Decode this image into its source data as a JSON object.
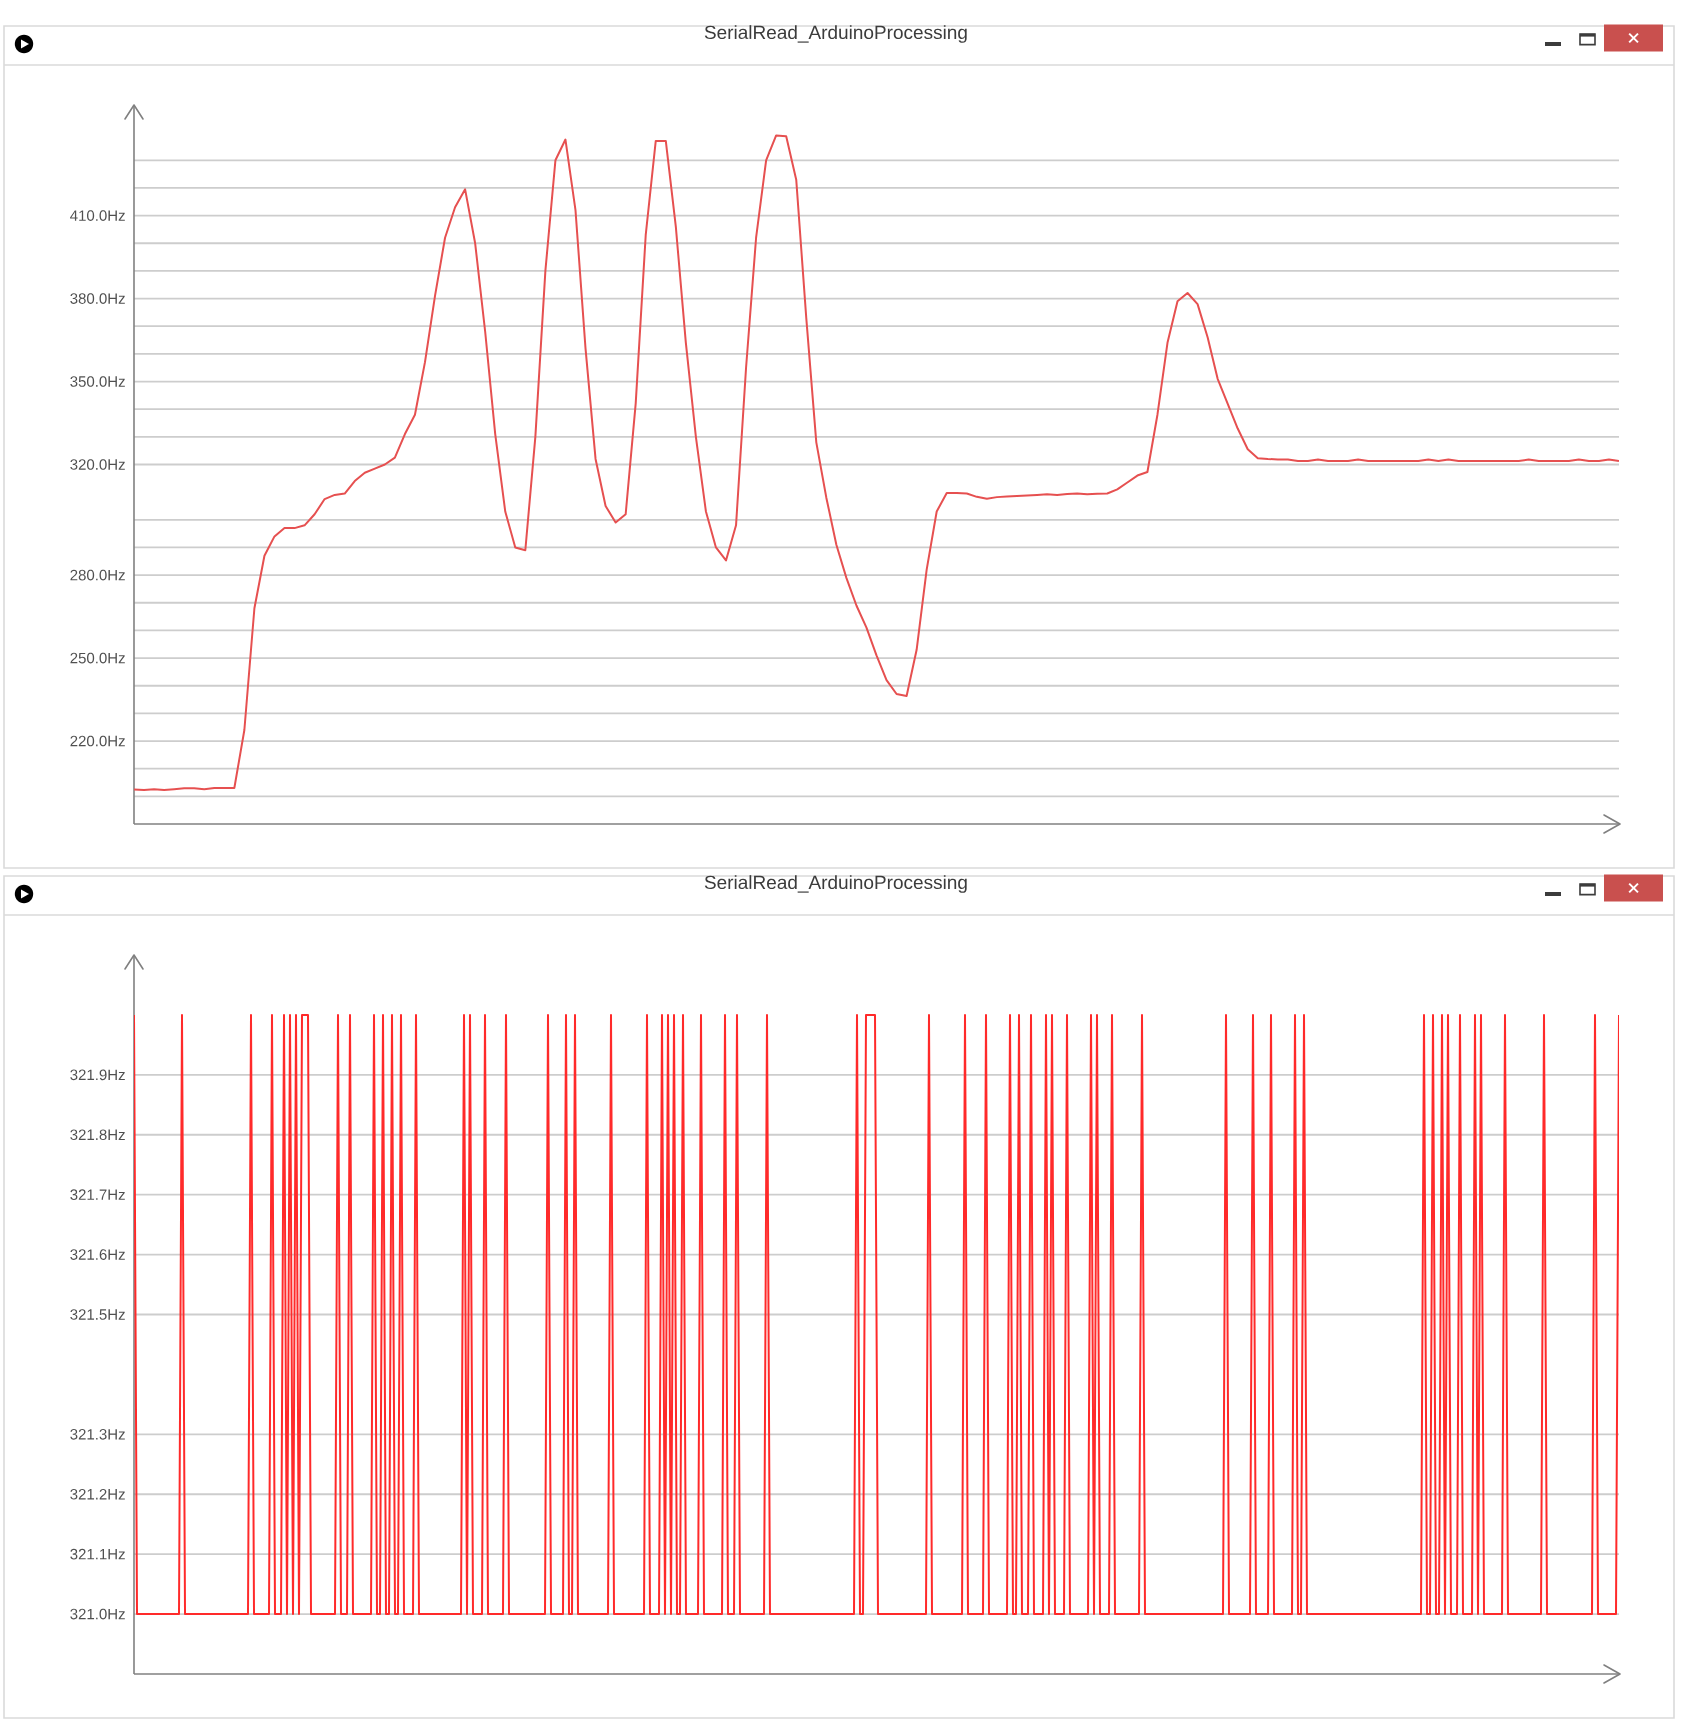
{
  "chart_data": [
    {
      "type": "line",
      "title": "SerialRead_ArduinoProcessing",
      "categories": [
        null,
        null,
        null,
        null,
        null,
        null,
        null,
        null,
        null,
        null,
        null,
        null,
        null,
        null,
        null,
        null,
        null,
        null,
        null,
        null,
        null,
        null,
        null,
        null,
        null,
        null,
        null,
        null,
        null,
        null,
        null,
        null,
        null,
        null,
        null,
        null,
        null,
        null,
        null,
        null,
        null,
        null,
        null,
        null,
        null,
        null,
        null,
        null,
        null,
        null,
        null,
        null,
        null,
        null,
        null,
        null,
        null,
        null,
        null,
        null,
        null,
        null,
        null,
        null,
        null,
        null,
        null,
        null,
        null,
        null,
        null,
        null,
        null,
        null,
        null,
        null,
        null,
        null,
        null,
        null,
        null,
        null,
        null,
        null,
        null,
        null,
        null,
        null,
        null,
        null,
        null,
        null,
        null,
        null,
        null,
        null,
        null,
        null,
        null,
        null,
        null,
        null,
        null,
        null,
        null,
        null,
        null,
        null,
        null,
        null,
        null,
        null,
        null,
        null,
        null,
        null,
        null,
        null,
        null,
        null,
        null,
        null,
        null,
        null,
        null,
        null,
        null,
        null,
        null,
        null,
        null,
        null,
        null,
        null,
        null,
        null,
        null,
        null,
        null,
        null,
        null,
        null,
        null,
        null,
        null,
        null,
        null,
        null,
        null
      ],
      "values": [
        202.5,
        202.3,
        202.6,
        202.3,
        202.6,
        202.9,
        202.9,
        202.6,
        203.0,
        203.0,
        203.0,
        224,
        268,
        287,
        294,
        297,
        297,
        298,
        302,
        307.5,
        309,
        309.5,
        314,
        317,
        318.5,
        320,
        322.5,
        331,
        338,
        357,
        381,
        402,
        413,
        419.5,
        400,
        368,
        331,
        303,
        290,
        289,
        330,
        390,
        430,
        437.5,
        412,
        362,
        322,
        305,
        299,
        302,
        342,
        403,
        437,
        437,
        406,
        364,
        330,
        303,
        290,
        285.3,
        298,
        355,
        402,
        430,
        439,
        438.7,
        423,
        373,
        328,
        308,
        291,
        279,
        269,
        261,
        251,
        242,
        237,
        236.3,
        253,
        282,
        303,
        309.7,
        309.7,
        309.5,
        308.3,
        307.6,
        308.2,
        308.4,
        308.6,
        308.8,
        309.0,
        309.2,
        309.0,
        309.3,
        309.5,
        309.2,
        309.4,
        309.5,
        311,
        313.5,
        316,
        317.3,
        338,
        364,
        379,
        382,
        378,
        366,
        351,
        342,
        333,
        325.5,
        322.3,
        322,
        321.8,
        321.8,
        321.3,
        321.3,
        321.8,
        321.3,
        321.3,
        321.3,
        321.8,
        321.3,
        321.3,
        321.3,
        321.3,
        321.3,
        321.3,
        321.8,
        321.3,
        321.8,
        321.3,
        321.3,
        321.3,
        321.3,
        321.3,
        321.3,
        321.3,
        321.8,
        321.3,
        321.3,
        321.3,
        321.3,
        321.8,
        321.3,
        321.3,
        321.8,
        321.3
      ],
      "color": "#e65050",
      "ylim": [
        190,
        450
      ],
      "yticks": [
        {
          "value": 200,
          "label": null
        },
        {
          "value": 210,
          "label": null
        },
        {
          "value": 220,
          "label": "220.0Hz"
        },
        {
          "value": 230,
          "label": null
        },
        {
          "value": 240,
          "label": null
        },
        {
          "value": 250,
          "label": "250.0Hz"
        },
        {
          "value": 260,
          "label": null
        },
        {
          "value": 270,
          "label": null
        },
        {
          "value": 280,
          "label": "280.0Hz"
        },
        {
          "value": 290,
          "label": null
        },
        {
          "value": 300,
          "label": null
        },
        {
          "value": 320,
          "label": "320.0Hz"
        },
        {
          "value": 330,
          "label": null
        },
        {
          "value": 340,
          "label": null
        },
        {
          "value": 350,
          "label": "350.0Hz"
        },
        {
          "value": 360,
          "label": null
        },
        {
          "value": 370,
          "label": null
        },
        {
          "value": 380,
          "label": "380.0Hz"
        },
        {
          "value": 390,
          "label": null
        },
        {
          "value": 400,
          "label": null
        },
        {
          "value": 410,
          "label": "410.0Hz"
        },
        {
          "value": 420,
          "label": null
        },
        {
          "value": 430,
          "label": null
        }
      ],
      "grid": "y"
    },
    {
      "type": "line",
      "title": "SerialRead_ArduinoProcessing",
      "categories": [
        null,
        null,
        null,
        null,
        null,
        null,
        null,
        null,
        null,
        null,
        null,
        null,
        null,
        null,
        null,
        null,
        null,
        null,
        null,
        null,
        null,
        null,
        null,
        null,
        null,
        null,
        null,
        null,
        null,
        null,
        null,
        null,
        null,
        null,
        null,
        null,
        null,
        null,
        null,
        null,
        null,
        null,
        null,
        null,
        null,
        null,
        null,
        null,
        null,
        null,
        null,
        null,
        null,
        null,
        null,
        null,
        null,
        null,
        null,
        null,
        null,
        null,
        null,
        null,
        null,
        null,
        null,
        null,
        null,
        null,
        null,
        null,
        null,
        null,
        null,
        null,
        null,
        null,
        null,
        null,
        null,
        null,
        null,
        null,
        null,
        null,
        null,
        null,
        null,
        null,
        null,
        null,
        null,
        null,
        null,
        null,
        null,
        null,
        null,
        null,
        null,
        null,
        null,
        null,
        null,
        null,
        null,
        null,
        null,
        null,
        null,
        null,
        null,
        null,
        null,
        null,
        null,
        null,
        null,
        null,
        null,
        null,
        null,
        null,
        null,
        null,
        null,
        null,
        null,
        null,
        null,
        null,
        null,
        null,
        null,
        null,
        null,
        null,
        null,
        null,
        null,
        null,
        null,
        null,
        null,
        null,
        null,
        null,
        null,
        null,
        null,
        null,
        null,
        null,
        null,
        null,
        null,
        null,
        null,
        null,
        null,
        null,
        null,
        null,
        null,
        null,
        null,
        null,
        null,
        null,
        null,
        null,
        null,
        null,
        null,
        null,
        null,
        null,
        null,
        null,
        null,
        null,
        null,
        null,
        null,
        null,
        null,
        null,
        null,
        null,
        null,
        null,
        null,
        null,
        null,
        null,
        null,
        null,
        null,
        null,
        null,
        null,
        null,
        null,
        null,
        null,
        null,
        null,
        null,
        null,
        null,
        null,
        null,
        null,
        null,
        null,
        null,
        null,
        null,
        null,
        null,
        null,
        null,
        null,
        null,
        null,
        null,
        null,
        null,
        null,
        null,
        null,
        null,
        null,
        null,
        null,
        null,
        null,
        null,
        null,
        null,
        null,
        null,
        null,
        null,
        null,
        null,
        null,
        null,
        null,
        null,
        null,
        null,
        null,
        null,
        null,
        null,
        null,
        null,
        null,
        null,
        null,
        null,
        null,
        null,
        null,
        null,
        null,
        null,
        null,
        null,
        null,
        null,
        null,
        null,
        null,
        null,
        null,
        null,
        null,
        null,
        null,
        null,
        null,
        null,
        null,
        null,
        null,
        null,
        null,
        null,
        null,
        null,
        null,
        null,
        null,
        null,
        null,
        null,
        null,
        null,
        null,
        null,
        null,
        null,
        null,
        null,
        null,
        null,
        null,
        null,
        null,
        null,
        null,
        null,
        null,
        null,
        null,
        null,
        null,
        null,
        null,
        null,
        null,
        null,
        null,
        null,
        null,
        null,
        null,
        null,
        null,
        null,
        null,
        null,
        null,
        null,
        null,
        null,
        null,
        null,
        null,
        null,
        null,
        null,
        null,
        null,
        null,
        null,
        null,
        null,
        null,
        null,
        null,
        null,
        null,
        null,
        null,
        null,
        null,
        null,
        null,
        null,
        null,
        null,
        null,
        null,
        null,
        null,
        null,
        null,
        null,
        null,
        null,
        null,
        null,
        null,
        null,
        null,
        null,
        null,
        null,
        null,
        null,
        null,
        null,
        null,
        null,
        null,
        null,
        null,
        null,
        null,
        null,
        null,
        null,
        null,
        null,
        null,
        null,
        null,
        null,
        null,
        null,
        null,
        null,
        null,
        null,
        null,
        null,
        null,
        null,
        null,
        null,
        null,
        null,
        null,
        null,
        null,
        null,
        null,
        null,
        null,
        null,
        null,
        null,
        null,
        null,
        null,
        null,
        null,
        null,
        null,
        null,
        null,
        null,
        null,
        null,
        null,
        null,
        null,
        null,
        null,
        null,
        null,
        null,
        null,
        null,
        null,
        null,
        null,
        null,
        null,
        null,
        null,
        null,
        null,
        null,
        null,
        null,
        null,
        null,
        null,
        null,
        null,
        null,
        null,
        null,
        null,
        null,
        null,
        null,
        null,
        null,
        null,
        null,
        null,
        null,
        null,
        null,
        null,
        null,
        null,
        null,
        null,
        null,
        null,
        null,
        null,
        null,
        null,
        null,
        null,
        null,
        null,
        null
      ],
      "values": [
        322,
        321,
        321,
        321,
        321,
        321,
        321,
        321,
        321,
        321,
        321,
        321,
        321,
        321,
        321,
        321,
        322,
        321,
        321,
        321,
        321,
        321,
        321,
        321,
        321,
        321,
        321,
        321,
        321,
        321,
        321,
        321,
        321,
        321,
        321,
        321,
        321,
        321,
        321,
        322,
        321,
        321,
        321,
        321,
        321,
        321,
        322,
        321,
        321,
        321,
        322,
        321,
        322,
        321,
        322,
        321,
        322,
        322,
        322,
        321,
        321,
        321,
        321,
        321,
        321,
        321,
        321,
        321,
        322,
        321,
        321,
        321,
        322,
        321,
        321,
        321,
        321,
        321,
        321,
        321,
        322,
        321,
        321,
        322,
        321,
        321,
        322,
        321,
        321,
        322,
        321,
        321,
        321,
        321,
        322,
        321,
        321,
        321,
        321,
        321,
        321,
        321,
        321,
        321,
        321,
        321,
        321,
        321,
        321,
        321,
        322,
        321,
        322,
        321,
        321,
        321,
        321,
        322,
        321,
        321,
        321,
        321,
        321,
        321,
        322,
        321,
        321,
        321,
        321,
        321,
        321,
        321,
        321,
        321,
        321,
        321,
        321,
        321,
        322,
        321,
        321,
        321,
        321,
        321,
        322,
        321,
        321,
        322,
        321,
        321,
        321,
        321,
        321,
        321,
        321,
        321,
        321,
        321,
        321,
        322,
        321,
        321,
        321,
        321,
        321,
        321,
        321,
        321,
        321,
        321,
        321,
        322,
        321,
        321,
        321,
        321,
        322,
        321,
        322,
        321,
        322,
        321,
        321,
        322,
        321,
        321,
        321,
        321,
        321,
        322,
        321,
        321,
        321,
        321,
        321,
        321,
        321,
        322,
        321,
        321,
        321,
        322,
        321,
        321,
        321,
        321,
        321,
        321,
        321,
        321,
        321,
        322,
        321,
        321,
        321,
        321,
        321,
        321,
        321,
        321,
        321,
        321,
        321,
        321,
        321,
        321,
        321,
        321,
        321,
        321,
        321,
        321,
        321,
        321,
        321,
        321,
        321,
        321,
        321,
        321,
        321,
        322,
        321,
        321,
        322,
        322,
        322,
        322,
        321,
        321,
        321,
        321,
        321,
        321,
        321,
        321,
        321,
        321,
        321,
        321,
        321,
        321,
        321,
        321,
        321,
        322,
        321,
        321,
        321,
        321,
        321,
        321,
        321,
        321,
        321,
        321,
        321,
        322,
        321,
        321,
        321,
        321,
        321,
        321,
        322,
        321,
        321,
        321,
        321,
        321,
        321,
        321,
        322,
        321,
        321,
        322,
        321,
        321,
        321,
        322,
        321,
        321,
        321,
        321,
        322,
        321,
        322,
        321,
        321,
        321,
        321,
        322,
        321,
        321,
        321,
        321,
        321,
        321,
        321,
        322,
        321,
        322,
        321,
        321,
        321,
        321,
        322,
        321,
        321,
        321,
        321,
        321,
        321,
        321,
        321,
        321,
        322,
        321,
        321,
        321,
        321,
        321,
        321,
        321,
        321,
        321,
        321,
        321,
        321,
        321,
        321,
        321,
        321,
        321,
        321,
        321,
        321,
        321,
        321,
        321,
        321,
        321,
        321,
        321,
        322,
        321,
        321,
        321,
        321,
        321,
        321,
        321,
        321,
        322,
        321,
        321,
        321,
        321,
        321,
        322,
        321,
        321,
        321,
        321,
        321,
        321,
        321,
        322,
        321,
        321,
        322,
        321,
        321,
        321,
        321,
        321,
        321,
        321,
        321,
        321,
        321,
        321,
        321,
        321,
        321,
        321,
        321,
        321,
        321,
        321,
        321,
        321,
        321,
        321,
        321,
        321,
        321,
        321,
        321,
        321,
        321,
        321,
        321,
        321,
        321,
        321,
        321,
        321,
        321,
        321,
        322,
        321,
        321,
        322,
        321,
        321,
        322,
        321,
        322,
        321,
        321,
        321,
        322,
        321,
        321,
        321,
        321,
        322,
        321,
        322,
        321,
        321,
        321,
        321,
        321,
        321,
        321,
        322,
        321,
        321,
        321,
        321,
        321,
        321,
        321,
        321,
        321,
        321,
        321,
        321,
        322,
        321,
        321,
        321,
        321,
        321,
        321,
        321,
        321,
        321,
        321,
        321,
        321,
        321,
        321,
        321,
        321,
        322,
        321,
        321,
        321,
        321,
        321,
        321,
        321,
        322
      ],
      "color": "#ff2a2a",
      "ylim": [
        320.9,
        322.1
      ],
      "yticks": [
        {
          "value": 321.0,
          "label": "321.0Hz"
        },
        {
          "value": 321.1,
          "label": "321.1Hz"
        },
        {
          "value": 321.2,
          "label": "321.2Hz"
        },
        {
          "value": 321.3,
          "label": "321.3Hz"
        },
        {
          "value": 321.5,
          "label": "321.5Hz"
        },
        {
          "value": 321.6,
          "label": "321.6Hz"
        },
        {
          "value": 321.7,
          "label": "321.7Hz"
        },
        {
          "value": 321.8,
          "label": "321.8Hz"
        },
        {
          "value": 321.9,
          "label": "321.9Hz"
        }
      ],
      "grid": "y"
    }
  ]
}
